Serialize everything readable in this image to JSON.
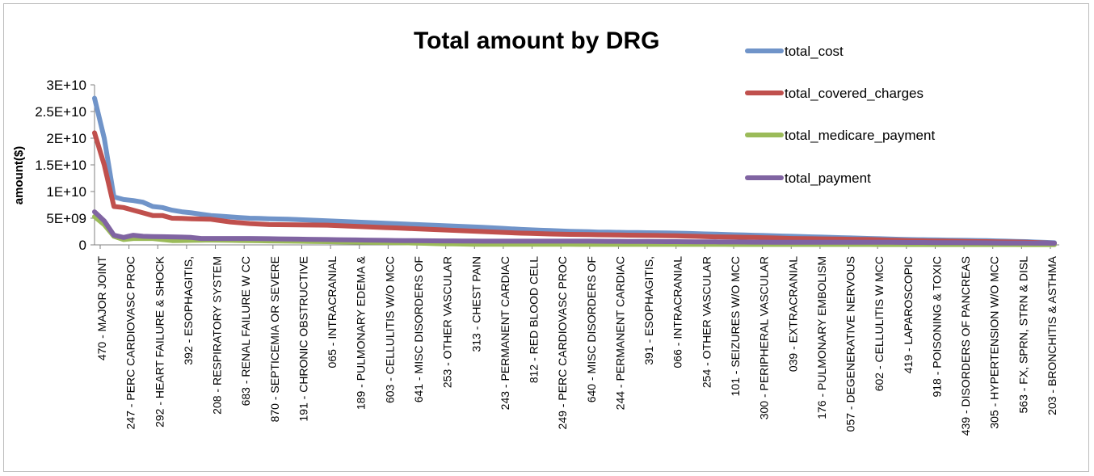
{
  "chart_data": {
    "type": "line",
    "title": "Total amount by DRG",
    "xlabel": "",
    "ylabel": "amount($)",
    "ylim": [
      0,
      30000000000
    ],
    "yticks": [
      {
        "value": 0,
        "label": "0"
      },
      {
        "value": 5000000000,
        "label": "5E+09"
      },
      {
        "value": 10000000000,
        "label": "1E+10"
      },
      {
        "value": 15000000000,
        "label": "1.5E+10"
      },
      {
        "value": 20000000000,
        "label": "2E+10"
      },
      {
        "value": 25000000000,
        "label": "2.5E+10"
      },
      {
        "value": 30000000000,
        "label": "3E+10"
      }
    ],
    "legend_position": "top-right",
    "grid": false,
    "point_count": 100,
    "tick_labels": [
      "470 - MAJOR JOINT",
      "247 - PERC CARDIOVASC PROC",
      "292 - HEART FAILURE & SHOCK",
      "392 - ESOPHAGITIS,",
      "208 - RESPIRATORY SYSTEM",
      "683 - RENAL FAILURE W CC",
      "870 - SEPTICEMIA OR SEVERE",
      "191 - CHRONIC OBSTRUCTIVE",
      "065 - INTRACRANIAL",
      "189 - PULMONARY EDEMA &",
      "603 - CELLULITIS W/O MCC",
      "641 - MISC DISORDERS OF",
      "253 - OTHER VASCULAR",
      "313 - CHEST PAIN",
      "243 - PERMANENT CARDIAC",
      "812 - RED BLOOD CELL",
      "249 - PERC CARDIOVASC PROC",
      "640 - MISC DISORDERS OF",
      "244 - PERMANENT CARDIAC",
      "391 - ESOPHAGITIS,",
      "066 - INTRACRANIAL",
      "254 - OTHER VASCULAR",
      "101 - SEIZURES W/O MCC",
      "300 - PERIPHERAL VASCULAR",
      "039 - EXTRACRANIAL",
      "176 - PULMONARY EMBOLISM",
      "057 - DEGENERATIVE NERVOUS",
      "602 - CELLULITIS W MCC",
      "419 - LAPAROSCOPIC",
      "918 - POISONING & TOXIC",
      "439 - DISORDERS OF PANCREAS",
      "305 - HYPERTENSION W/O MCC",
      "563 - FX, SPRN, STRN & DISL",
      "203 - BRONCHITIS & ASTHMA"
    ],
    "series": [
      {
        "name": "total_cost",
        "color": "#7094c9",
        "anchors": [
          [
            0,
            27.5
          ],
          [
            1,
            20
          ],
          [
            2,
            9
          ],
          [
            3,
            8.5
          ],
          [
            4,
            8.3
          ],
          [
            5,
            8
          ],
          [
            6,
            7.2
          ],
          [
            7,
            7
          ],
          [
            8,
            6.5
          ],
          [
            9,
            6.2
          ],
          [
            10,
            6
          ],
          [
            12,
            5.5
          ],
          [
            16,
            5
          ],
          [
            20,
            4.8
          ],
          [
            24,
            4.5
          ],
          [
            28,
            4.2
          ],
          [
            32,
            3.9
          ],
          [
            36,
            3.6
          ],
          [
            40,
            3.3
          ],
          [
            44,
            2.9
          ],
          [
            48,
            2.6
          ],
          [
            52,
            2.4
          ],
          [
            56,
            2.3
          ],
          [
            60,
            2.2
          ],
          [
            64,
            2
          ],
          [
            68,
            1.8
          ],
          [
            72,
            1.6
          ],
          [
            76,
            1.4
          ],
          [
            80,
            1.2
          ],
          [
            84,
            1.0
          ],
          [
            88,
            0.9
          ],
          [
            92,
            0.8
          ],
          [
            96,
            0.6
          ],
          [
            99,
            0.4
          ]
        ]
      },
      {
        "name": "total_covered_charges",
        "color": "#c0504d",
        "anchors": [
          [
            0,
            21
          ],
          [
            1,
            15
          ],
          [
            2,
            7.2
          ],
          [
            3,
            7
          ],
          [
            4,
            6.5
          ],
          [
            5,
            6
          ],
          [
            6,
            5.5
          ],
          [
            7,
            5.5
          ],
          [
            8,
            5
          ],
          [
            12,
            4.8
          ],
          [
            14,
            4.3
          ],
          [
            16,
            4
          ],
          [
            18,
            3.8
          ],
          [
            24,
            3.7
          ],
          [
            28,
            3.4
          ],
          [
            32,
            3.1
          ],
          [
            36,
            2.8
          ],
          [
            40,
            2.5
          ],
          [
            44,
            2.2
          ],
          [
            48,
            2
          ],
          [
            52,
            1.9
          ],
          [
            56,
            1.8
          ],
          [
            60,
            1.7
          ],
          [
            64,
            1.5
          ],
          [
            68,
            1.4
          ],
          [
            72,
            1.2
          ],
          [
            76,
            1.1
          ],
          [
            80,
            1.0
          ],
          [
            84,
            0.8
          ],
          [
            88,
            0.7
          ],
          [
            92,
            0.6
          ],
          [
            96,
            0.5
          ],
          [
            99,
            0.3
          ]
        ]
      },
      {
        "name": "total_medicare_payment",
        "color": "#9bbb59",
        "anchors": [
          [
            0,
            5.3
          ],
          [
            1,
            3.8
          ],
          [
            2,
            1.6
          ],
          [
            3,
            1.0
          ],
          [
            4,
            1.2
          ],
          [
            6,
            1.2
          ],
          [
            8,
            0.8
          ],
          [
            12,
            0.9
          ],
          [
            16,
            0.8
          ],
          [
            20,
            0.7
          ],
          [
            24,
            0.6
          ],
          [
            28,
            0.5
          ],
          [
            32,
            0.4
          ],
          [
            36,
            0.2
          ],
          [
            40,
            0.1
          ],
          [
            44,
            0.1
          ],
          [
            48,
            0.1
          ],
          [
            99,
            0.05
          ]
        ]
      },
      {
        "name": "total_payment",
        "color": "#8064a2",
        "anchors": [
          [
            0,
            6.2
          ],
          [
            1,
            4.5
          ],
          [
            2,
            1.8
          ],
          [
            3,
            1.4
          ],
          [
            4,
            1.8
          ],
          [
            5,
            1.6
          ],
          [
            8,
            1.5
          ],
          [
            10,
            1.4
          ],
          [
            11,
            1.2
          ],
          [
            16,
            1.2
          ],
          [
            20,
            1.1
          ],
          [
            24,
            1.0
          ],
          [
            28,
            0.9
          ],
          [
            32,
            0.8
          ],
          [
            40,
            0.7
          ],
          [
            50,
            0.7
          ],
          [
            60,
            0.6
          ],
          [
            70,
            0.5
          ],
          [
            80,
            0.5
          ],
          [
            90,
            0.4
          ],
          [
            99,
            0.3
          ]
        ]
      }
    ],
    "values_unit_note_scale": 1000000000
  }
}
